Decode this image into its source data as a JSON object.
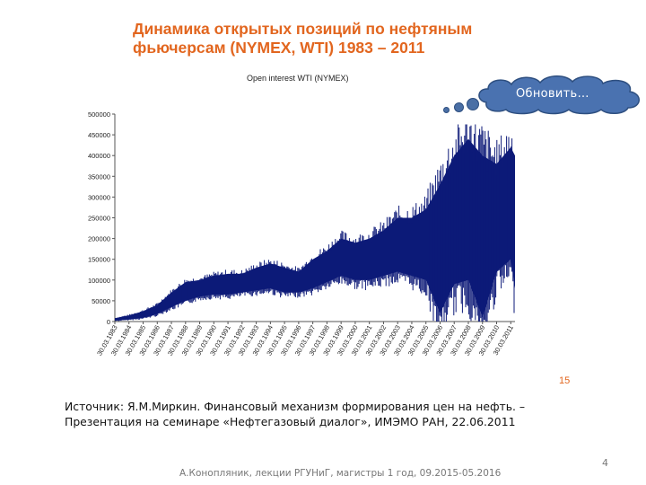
{
  "slide": {
    "title": "Динамика открытых позиций по нефтяным фьючерсам (NYMEX, WTI) 1983 – 2011",
    "button_label": "Обновить…",
    "inner_page_number": "15",
    "source": "Источник: Я.М.Миркин. Финансовый механизм формирования цен на нефть. – Презентация на семинаре «Нефтегазовый диалог», ИМЭМО РАН, 22.06.2011",
    "footer": "А.Конопляник, лекции РГУНиГ, магистры 1 год, 09.2015-05.2016",
    "slide_number": "4"
  },
  "chart_data": {
    "type": "area",
    "title": "Open interest WTI (NYMEX)",
    "color": "#0d1a78",
    "ylim": [
      0,
      500000
    ],
    "yticks": [
      0,
      50000,
      100000,
      150000,
      200000,
      250000,
      300000,
      350000,
      400000,
      450000,
      500000
    ],
    "ytick_labels": [
      "0",
      "50000",
      "100000",
      "150000",
      "200000",
      "250000",
      "300000",
      "350000",
      "400000",
      "450000",
      "500000"
    ],
    "xtick_labels": [
      "30.03.1983",
      "30.03.1984",
      "30.03.1985",
      "30.03.1986",
      "30.03.1987",
      "30.03.1988",
      "30.03.1989",
      "30.03.1990",
      "30.03.1991",
      "30.03.1992",
      "30.03.1993",
      "30.03.1994",
      "30.03.1995",
      "30.03.1996",
      "30.03.1997",
      "30.03.1998",
      "30.03.1999",
      "30.03.2000",
      "30.03.2001",
      "30.03.2002",
      "30.03.2003",
      "30.03.2004",
      "30.03.2005",
      "30.03.2006",
      "30.03.2007",
      "30.03.2008",
      "30.03.2009",
      "30.03.2010",
      "30.03.2011"
    ],
    "x_years": [
      1983,
      1984,
      1985,
      1986,
      1987,
      1988,
      1989,
      1990,
      1991,
      1992,
      1993,
      1994,
      1995,
      1996,
      1997,
      1998,
      1999,
      2000,
      2001,
      2002,
      2003,
      2004,
      2005,
      2006,
      2007,
      2008,
      2009,
      2010,
      2011,
      2011.3
    ],
    "series_high": [
      8000,
      15000,
      25000,
      40000,
      70000,
      95000,
      100000,
      110000,
      115000,
      115000,
      130000,
      140000,
      130000,
      120000,
      150000,
      170000,
      200000,
      190000,
      200000,
      220000,
      250000,
      250000,
      270000,
      330000,
      400000,
      440000,
      400000,
      380000,
      420000,
      400000
    ],
    "series_low": [
      2000,
      5000,
      9000,
      18000,
      35000,
      50000,
      60000,
      65000,
      65000,
      70000,
      75000,
      80000,
      70000,
      70000,
      80000,
      95000,
      110000,
      100000,
      100000,
      110000,
      120000,
      110000,
      100000,
      20000,
      90000,
      100000,
      10000,
      120000,
      150000,
      80000
    ]
  }
}
